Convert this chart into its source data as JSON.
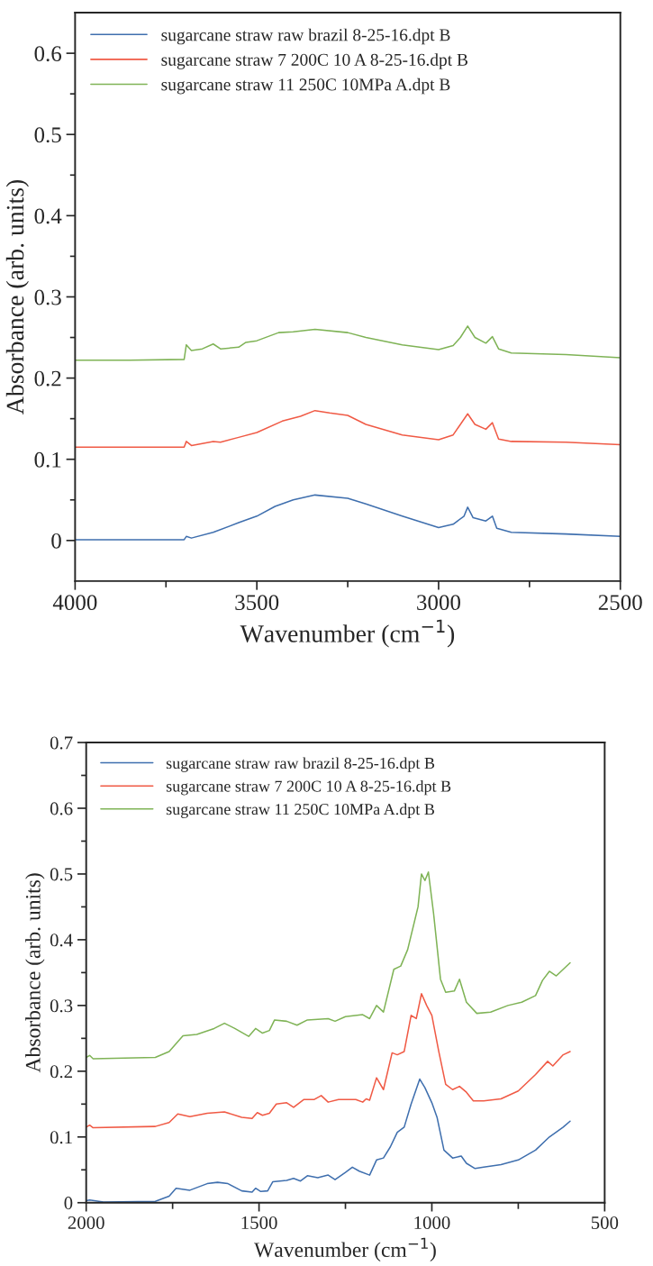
{
  "chart_data": [
    {
      "type": "line",
      "xlabel": "Wavenumber (cm$^{−1}$)",
      "ylabel": "Absorbance (arb. units)",
      "xlim": [
        4000,
        2500
      ],
      "ylim": [
        -0.05,
        0.65
      ],
      "xticks": [
        4000,
        {
          "value": 3750,
          "label": null
        },
        3500,
        {
          "value": 3250,
          "label": null
        },
        3000,
        {
          "value": 2750,
          "label": null
        },
        2500
      ],
      "yticks": [
        0,
        {
          "value": 0.05,
          "label": null
        },
        0.1,
        {
          "value": 0.15,
          "label": null
        },
        0.2,
        {
          "value": 0.25,
          "label": null
        },
        0.3,
        {
          "value": 0.35,
          "label": null
        },
        0.4,
        {
          "value": 0.45,
          "label": null
        },
        0.5,
        {
          "value": 0.55,
          "label": null
        },
        0.6
      ],
      "grid": false,
      "legend": "top left",
      "line_style": "solid",
      "marker": "none",
      "series": [
        {
          "name": "sugarcane straw raw brazil 8-25-16.dpt B",
          "color": "#3f6fae",
          "x": [
            4000,
            3850,
            3700,
            3694,
            3680,
            3620,
            3550,
            3500,
            3450,
            3400,
            3340,
            3250,
            3200,
            3100,
            3000,
            2960,
            2930,
            2920,
            2905,
            2870,
            2852,
            2840,
            2800,
            2650,
            2500
          ],
          "values": [
            0.001,
            0.001,
            0.001,
            0.005,
            0.003,
            0.01,
            0.022,
            0.03,
            0.042,
            0.05,
            0.056,
            0.052,
            0.045,
            0.03,
            0.016,
            0.02,
            0.03,
            0.041,
            0.028,
            0.024,
            0.03,
            0.015,
            0.01,
            0.008,
            0.005
          ]
        },
        {
          "name": "sugarcane straw 7 200C 10 A 8-25-16.dpt B",
          "color": "#f05a45",
          "x": [
            4000,
            3850,
            3700,
            3694,
            3680,
            3620,
            3600,
            3550,
            3500,
            3430,
            3380,
            3340,
            3300,
            3250,
            3200,
            3100,
            3000,
            2960,
            2920,
            2900,
            2870,
            2852,
            2835,
            2800,
            2650,
            2500
          ],
          "values": [
            0.115,
            0.115,
            0.115,
            0.122,
            0.117,
            0.122,
            0.121,
            0.127,
            0.133,
            0.147,
            0.153,
            0.16,
            0.157,
            0.154,
            0.143,
            0.13,
            0.124,
            0.13,
            0.156,
            0.143,
            0.137,
            0.145,
            0.125,
            0.122,
            0.121,
            0.118
          ]
        },
        {
          "name": "sugarcane straw 11 250C 10MPa A.dpt B",
          "color": "#7fb356",
          "x": [
            4000,
            3850,
            3700,
            3694,
            3680,
            3650,
            3620,
            3600,
            3550,
            3530,
            3500,
            3440,
            3400,
            3340,
            3250,
            3200,
            3100,
            3000,
            2960,
            2940,
            2920,
            2900,
            2870,
            2852,
            2835,
            2800,
            2650,
            2500
          ],
          "values": [
            0.222,
            0.222,
            0.223,
            0.241,
            0.234,
            0.236,
            0.242,
            0.236,
            0.238,
            0.244,
            0.246,
            0.256,
            0.257,
            0.26,
            0.256,
            0.25,
            0.241,
            0.235,
            0.24,
            0.25,
            0.264,
            0.25,
            0.243,
            0.251,
            0.236,
            0.231,
            0.229,
            0.225
          ]
        }
      ]
    },
    {
      "type": "line",
      "xlabel": "Wavenumber (cm$^{−1}$)",
      "ylabel": "Absorbance (arb. units)",
      "xlim": [
        2000,
        500
      ],
      "ylim": [
        0,
        0.7
      ],
      "xticks": [
        2000,
        {
          "value": 1750,
          "label": null
        },
        1500,
        {
          "value": 1250,
          "label": null
        },
        1000,
        {
          "value": 750,
          "label": null
        },
        500
      ],
      "yticks": [
        0,
        {
          "value": 0.05,
          "label": null
        },
        0.1,
        {
          "value": 0.15,
          "label": null
        },
        0.2,
        {
          "value": 0.25,
          "label": null
        },
        0.3,
        {
          "value": 0.35,
          "label": null
        },
        0.4,
        {
          "value": 0.45,
          "label": null
        },
        0.5,
        {
          "value": 0.55,
          "label": null
        },
        0.6,
        {
          "value": 0.65,
          "label": null
        },
        0.7
      ],
      "grid": false,
      "legend": "top left",
      "line_style": "solid",
      "marker": "none",
      "series": [
        {
          "name": "sugarcane straw raw brazil 8-25-16.dpt B",
          "color": "#3f6fae",
          "x": [
            2000,
            1990,
            1950,
            1800,
            1760,
            1740,
            1700,
            1650,
            1620,
            1590,
            1550,
            1520,
            1510,
            1495,
            1475,
            1460,
            1420,
            1400,
            1380,
            1360,
            1330,
            1300,
            1280,
            1250,
            1230,
            1210,
            1180,
            1160,
            1140,
            1120,
            1100,
            1080,
            1060,
            1035,
            1020,
            1000,
            985,
            965,
            940,
            915,
            900,
            875,
            850,
            800,
            750,
            700,
            660,
            620,
            600
          ],
          "values": [
            0.003,
            0.004,
            0.001,
            0.002,
            0.01,
            0.022,
            0.019,
            0.029,
            0.031,
            0.029,
            0.018,
            0.016,
            0.022,
            0.017,
            0.018,
            0.032,
            0.034,
            0.037,
            0.033,
            0.041,
            0.038,
            0.042,
            0.035,
            0.046,
            0.054,
            0.048,
            0.042,
            0.065,
            0.068,
            0.085,
            0.107,
            0.115,
            0.15,
            0.188,
            0.175,
            0.152,
            0.13,
            0.08,
            0.068,
            0.071,
            0.06,
            0.052,
            0.054,
            0.058,
            0.065,
            0.08,
            0.1,
            0.115,
            0.124
          ]
        },
        {
          "name": "sugarcane straw 7 200C 10 A 8-25-16.dpt B",
          "color": "#f05a45",
          "x": [
            2000,
            1990,
            1980,
            1800,
            1760,
            1735,
            1700,
            1650,
            1600,
            1550,
            1520,
            1505,
            1490,
            1470,
            1450,
            1420,
            1400,
            1370,
            1340,
            1320,
            1300,
            1270,
            1220,
            1200,
            1190,
            1180,
            1160,
            1140,
            1115,
            1100,
            1080,
            1060,
            1045,
            1030,
            1015,
            1000,
            980,
            960,
            940,
            920,
            900,
            880,
            850,
            800,
            750,
            700,
            665,
            650,
            620,
            600
          ],
          "values": [
            0.115,
            0.118,
            0.114,
            0.116,
            0.122,
            0.135,
            0.131,
            0.136,
            0.138,
            0.13,
            0.128,
            0.137,
            0.133,
            0.136,
            0.15,
            0.152,
            0.145,
            0.157,
            0.157,
            0.163,
            0.153,
            0.157,
            0.157,
            0.153,
            0.158,
            0.156,
            0.19,
            0.172,
            0.228,
            0.225,
            0.23,
            0.285,
            0.28,
            0.318,
            0.3,
            0.285,
            0.23,
            0.18,
            0.172,
            0.177,
            0.168,
            0.155,
            0.155,
            0.158,
            0.17,
            0.195,
            0.215,
            0.208,
            0.225,
            0.23
          ]
        },
        {
          "name": "sugarcane straw 11 250C 10MPa A.dpt B",
          "color": "#7fb356",
          "x": [
            2000,
            1990,
            1980,
            1800,
            1760,
            1720,
            1680,
            1630,
            1600,
            1570,
            1530,
            1510,
            1490,
            1470,
            1455,
            1420,
            1390,
            1360,
            1300,
            1280,
            1250,
            1200,
            1180,
            1160,
            1140,
            1110,
            1090,
            1070,
            1040,
            1030,
            1020,
            1010,
            995,
            975,
            960,
            935,
            920,
            900,
            870,
            830,
            780,
            740,
            700,
            680,
            660,
            640,
            620,
            600
          ],
          "values": [
            0.221,
            0.224,
            0.219,
            0.221,
            0.23,
            0.254,
            0.256,
            0.265,
            0.273,
            0.265,
            0.253,
            0.265,
            0.258,
            0.262,
            0.278,
            0.276,
            0.27,
            0.278,
            0.28,
            0.276,
            0.283,
            0.286,
            0.28,
            0.3,
            0.29,
            0.355,
            0.36,
            0.385,
            0.45,
            0.5,
            0.49,
            0.503,
            0.44,
            0.34,
            0.32,
            0.322,
            0.34,
            0.305,
            0.288,
            0.29,
            0.3,
            0.305,
            0.315,
            0.338,
            0.352,
            0.345,
            0.355,
            0.365
          ]
        }
      ]
    }
  ]
}
